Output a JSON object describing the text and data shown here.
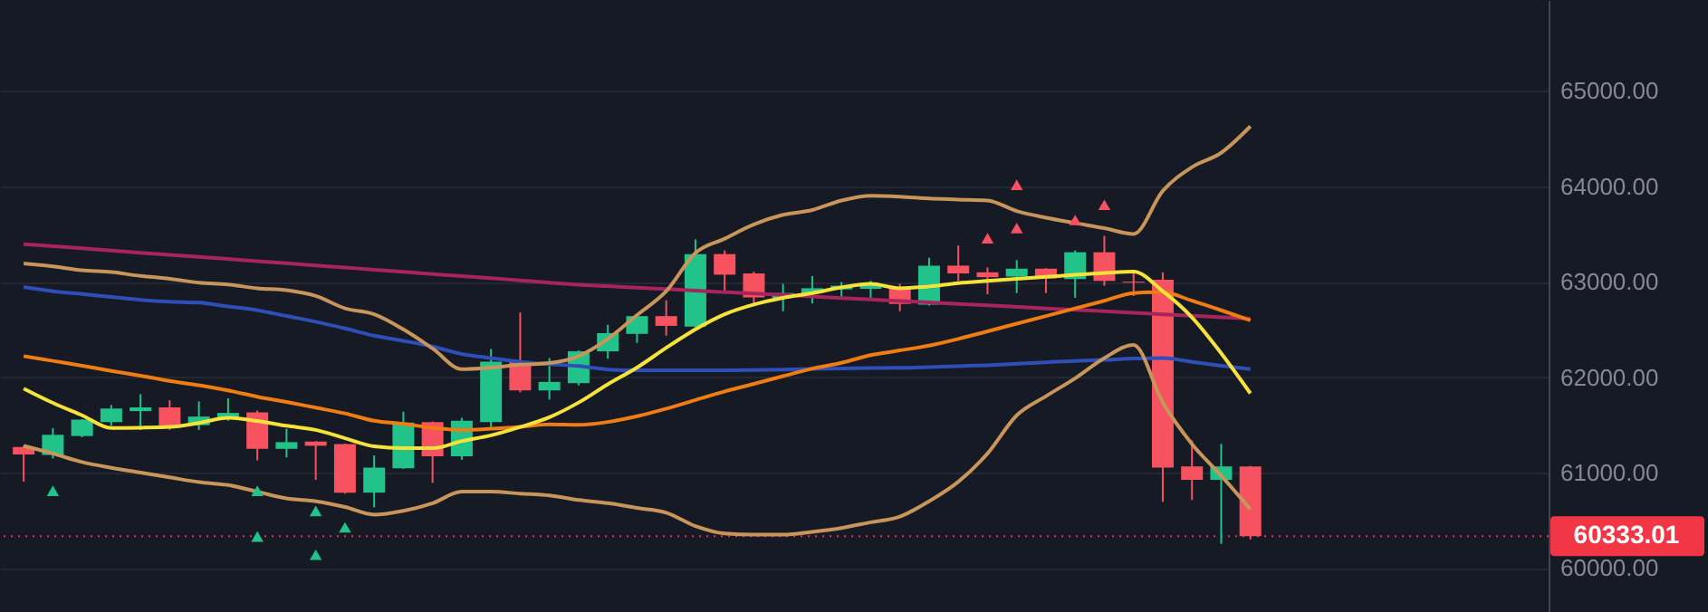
{
  "chart_data": {
    "type": "candlestick",
    "categories": [
      null,
      null,
      null,
      null,
      null,
      null,
      null,
      null,
      null,
      null,
      null,
      null,
      null,
      null,
      null,
      null,
      null,
      null,
      null,
      null,
      null,
      null,
      null,
      null,
      null,
      null,
      null,
      null,
      null,
      null,
      null,
      null,
      null,
      null,
      null,
      null,
      null,
      null,
      null,
      null,
      null,
      null,
      null
    ],
    "ohlc": [
      [
        61268,
        61280,
        60905,
        61191
      ],
      [
        61185,
        61466,
        61147,
        61396
      ],
      [
        61383,
        61560,
        61370,
        61555
      ],
      [
        61530,
        61708,
        61491,
        61670
      ],
      [
        61644,
        61822,
        61447,
        61683
      ],
      [
        61683,
        61759,
        61447,
        61491
      ],
      [
        61497,
        61746,
        61447,
        61587
      ],
      [
        61574,
        61778,
        61543,
        61625
      ],
      [
        61631,
        61650,
        61128,
        61249
      ],
      [
        61249,
        61459,
        61160,
        61319
      ],
      [
        61325,
        61330,
        60924,
        61281
      ],
      [
        61300,
        61305,
        60780,
        60790
      ],
      [
        60790,
        61179,
        60637,
        61052
      ],
      [
        61046,
        61638,
        61040,
        61524
      ],
      [
        61530,
        61535,
        60893,
        61172
      ],
      [
        61172,
        61574,
        61134,
        61543
      ],
      [
        61530,
        62294,
        61478,
        62161
      ],
      [
        62161,
        62677,
        61841,
        61861
      ],
      [
        61861,
        62199,
        61765,
        61950
      ],
      [
        61937,
        62280,
        61912,
        62270
      ],
      [
        62270,
        62549,
        62193,
        62461
      ],
      [
        62453,
        62650,
        62358,
        62639
      ],
      [
        62639,
        62805,
        62434,
        62537
      ],
      [
        62530,
        63442,
        62520,
        63289
      ],
      [
        63289,
        63327,
        62881,
        63073
      ],
      [
        63086,
        63105,
        62767,
        62835
      ],
      [
        62830,
        62977,
        62690,
        62881
      ],
      [
        62881,
        63059,
        62772,
        62931
      ],
      [
        62919,
        62996,
        62816,
        62958
      ],
      [
        62925,
        63008,
        62816,
        62964
      ],
      [
        62944,
        62977,
        62690,
        62767
      ],
      [
        62759,
        63250,
        62750,
        63168
      ],
      [
        63168,
        63378,
        63008,
        63086
      ],
      [
        63098,
        63149,
        62868,
        63047
      ],
      [
        63053,
        63226,
        62881,
        63136
      ],
      [
        63136,
        63140,
        62881,
        63034
      ],
      [
        63027,
        63327,
        62830,
        63308
      ],
      [
        63308,
        63480,
        62958,
        63008
      ],
      [
        63000,
        63105,
        62849,
        62990
      ],
      [
        63021,
        63097,
        60694,
        61052
      ],
      [
        61065,
        61338,
        60713,
        60924
      ],
      [
        60924,
        61300,
        60254,
        61065
      ],
      [
        61065,
        61070,
        60300,
        60333.01
      ]
    ],
    "colors": [
      "#f7525f",
      "#22c38a",
      "#22c38a",
      "#22c38a",
      "#22c38a",
      "#f7525f",
      "#22c38a",
      "#22c38a",
      "#f7525f",
      "#22c38a",
      "#f7525f",
      "#f7525f",
      "#22c38a",
      "#22c38a",
      "#f7525f",
      "#22c38a",
      "#22c38a",
      "#f7525f",
      "#22c38a",
      "#22c38a",
      "#22c38a",
      "#22c38a",
      "#f7525f",
      "#22c38a",
      "#f7525f",
      "#f7525f",
      "#22c38a",
      "#22c38a",
      "#22c38a",
      "#22c38a",
      "#f7525f",
      "#22c38a",
      "#f7525f",
      "#f7525f",
      "#22c38a",
      "#f7525f",
      "#22c38a",
      "#f7525f",
      "#f7525f",
      "#f7525f",
      "#f7525f",
      "#22c38a",
      "#f7525f"
    ],
    "series": [
      {
        "type": "line",
        "color": "#a8245c",
        "values": [
          63393,
          63371,
          63349,
          63325,
          63303,
          63281,
          63259,
          63237,
          63214,
          63192,
          63170,
          63148,
          63125,
          63102,
          63080,
          63058,
          63036,
          63014,
          62990,
          62968,
          62953,
          62937,
          62922,
          62906,
          62890,
          62875,
          62860,
          62845,
          62829,
          62813,
          62798,
          62783,
          62767,
          62751,
          62736,
          62720,
          62705,
          62690,
          62673,
          62658,
          62643,
          62627,
          62612
        ]
      },
      {
        "type": "line",
        "color": "#2f4fb8",
        "values": [
          62944,
          62900,
          62870,
          62840,
          62810,
          62790,
          62780,
          62740,
          62700,
          62640,
          62580,
          62510,
          62434,
          62380,
          62320,
          62243,
          62200,
          62160,
          62135,
          62116,
          62080,
          62071,
          62071,
          62071,
          62071,
          62075,
          62080,
          62085,
          62090,
          62095,
          62097,
          62105,
          62115,
          62125,
          62140,
          62155,
          62170,
          62180,
          62195,
          62199,
          62160,
          62120,
          62084
        ]
      },
      {
        "type": "line",
        "color": "#ef7d14",
        "values": [
          62220,
          62170,
          62120,
          62065,
          62015,
          61960,
          61915,
          61860,
          61795,
          61740,
          61680,
          61620,
          61543,
          61510,
          61470,
          61447,
          61460,
          61480,
          61505,
          61500,
          61530,
          61590,
          61670,
          61760,
          61850,
          61930,
          62010,
          62090,
          62150,
          62230,
          62280,
          62330,
          62400,
          62480,
          62560,
          62640,
          62720,
          62800,
          62880,
          62890,
          62800,
          62700,
          62595
        ]
      },
      {
        "type": "line",
        "color": "#c8955a",
        "values": [
          63190,
          63160,
          63120,
          63100,
          63060,
          63030,
          62990,
          62970,
          62930,
          62910,
          62850,
          62720,
          62658,
          62500,
          62300,
          62084,
          62100,
          62130,
          62147,
          62220,
          62400,
          62650,
          62900,
          63300,
          63450,
          63600,
          63700,
          63750,
          63850,
          63900,
          63890,
          63870,
          63860,
          63850,
          63740,
          63670,
          63614,
          63560,
          63500,
          63950,
          64200,
          64350,
          64627
        ]
      },
      {
        "type": "line",
        "color": "#c8955a",
        "values": [
          61280,
          61200,
          61110,
          61050,
          61000,
          60950,
          60900,
          60870,
          60800,
          60730,
          60700,
          60640,
          60560,
          60600,
          60680,
          60800,
          60800,
          60780,
          60760,
          60713,
          60680,
          60630,
          60580,
          60440,
          60363,
          60350,
          60350,
          60380,
          60420,
          60480,
          60540,
          60700,
          60904,
          61200,
          61600,
          61800,
          61988,
          62200,
          62338,
          61734,
          61300,
          60969,
          60617
        ]
      },
      {
        "type": "line",
        "color": "#f5e33b",
        "values": [
          61880,
          61730,
          61600,
          61467,
          61470,
          61478,
          61520,
          61574,
          61540,
          61490,
          61447,
          61360,
          61275,
          61256,
          61256,
          61330,
          61390,
          61478,
          61580,
          61734,
          61925,
          62100,
          62307,
          62500,
          62658,
          62760,
          62830,
          62880,
          62940,
          62977,
          62931,
          62950,
          62985,
          63008,
          63030,
          63050,
          63072,
          63090,
          63105,
          62900,
          62626,
          62250,
          61830
        ]
      },
      {
        "type": "scatter",
        "marker": "triangle",
        "color": "#22c38a",
        "values": [
          null,
          60809,
          null,
          null,
          null,
          null,
          null,
          null,
          60809,
          null,
          60598,
          60426,
          null,
          null,
          null,
          null,
          null,
          null,
          null,
          null,
          null,
          null,
          null,
          null,
          null,
          null,
          null,
          null,
          null,
          null,
          null,
          null,
          null,
          null,
          null,
          null,
          null,
          null,
          null,
          null,
          null,
          null,
          null
        ]
      },
      {
        "type": "scatter",
        "marker": "triangle",
        "color": "#22c38a",
        "values": [
          null,
          null,
          null,
          null,
          null,
          null,
          null,
          null,
          60331,
          null,
          60140,
          null,
          null,
          null,
          null,
          null,
          null,
          null,
          null,
          null,
          null,
          null,
          null,
          null,
          null,
          null,
          null,
          null,
          null,
          null,
          null,
          null,
          null,
          null,
          null,
          null,
          null,
          null,
          null,
          null,
          null,
          null,
          null
        ]
      },
      {
        "type": "scatter",
        "marker": "triangle",
        "color": "#f7525f",
        "values": [
          null,
          null,
          null,
          null,
          null,
          null,
          null,
          null,
          null,
          null,
          null,
          null,
          null,
          null,
          null,
          null,
          null,
          null,
          null,
          null,
          null,
          null,
          null,
          null,
          null,
          null,
          null,
          null,
          null,
          null,
          null,
          null,
          null,
          63455,
          63562,
          null,
          63646,
          63805,
          null,
          null,
          null,
          null,
          null
        ]
      },
      {
        "type": "scatter",
        "marker": "triangle",
        "color": "#f7525f",
        "values": [
          null,
          null,
          null,
          null,
          null,
          null,
          null,
          null,
          null,
          null,
          null,
          null,
          null,
          null,
          null,
          null,
          null,
          null,
          null,
          null,
          null,
          null,
          null,
          null,
          null,
          null,
          null,
          null,
          null,
          null,
          null,
          null,
          null,
          null,
          64015,
          null,
          null,
          null,
          null,
          null,
          null,
          null,
          null
        ]
      }
    ],
    "ylim": [
      59540,
      65950
    ],
    "yticks": [
      {
        "value": 60000,
        "label": "60000.00"
      },
      {
        "value": 61000,
        "label": "61000.00"
      },
      {
        "value": 62000,
        "label": "62000.00"
      },
      {
        "value": 63000,
        "label": "63000.00"
      },
      {
        "value": 64000,
        "label": "64000.00"
      },
      {
        "value": 65000,
        "label": "65000.00"
      }
    ],
    "ref_lines": [
      {
        "axis": "y",
        "value": 60333.01,
        "label": "60333.01",
        "color": "#f23645",
        "line_style": "dotted"
      }
    ],
    "grid": "y",
    "tick_labels": "y"
  }
}
